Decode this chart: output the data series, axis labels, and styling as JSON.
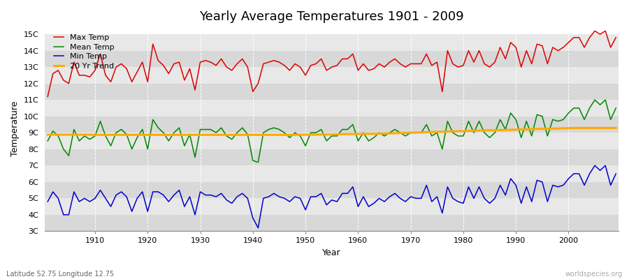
{
  "title": "Yearly Average Temperatures 1901 - 2009",
  "xlabel": "Year",
  "ylabel": "Temperature",
  "footer_left": "Latitude 52.75 Longitude 12.75",
  "footer_right": "worldspecies.org",
  "ylim": [
    3,
    15.5
  ],
  "yticks": [
    3,
    4,
    5,
    6,
    7,
    8,
    9,
    10,
    11,
    12,
    13,
    14,
    15
  ],
  "ytick_labels": [
    "3C",
    "4C",
    "5C",
    "6C",
    "7C",
    "8C",
    "9C",
    "10C",
    "11C",
    "12C",
    "13C",
    "14C",
    "15C"
  ],
  "xlim": [
    1900.5,
    2009.5
  ],
  "xticks": [
    1910,
    1920,
    1930,
    1940,
    1950,
    1960,
    1970,
    1980,
    1990,
    2000
  ],
  "years": [
    1901,
    1902,
    1903,
    1904,
    1905,
    1906,
    1907,
    1908,
    1909,
    1910,
    1911,
    1912,
    1913,
    1914,
    1915,
    1916,
    1917,
    1918,
    1919,
    1920,
    1921,
    1922,
    1923,
    1924,
    1925,
    1926,
    1927,
    1928,
    1929,
    1930,
    1931,
    1932,
    1933,
    1934,
    1935,
    1936,
    1937,
    1938,
    1939,
    1940,
    1941,
    1942,
    1943,
    1944,
    1945,
    1946,
    1947,
    1948,
    1949,
    1950,
    1951,
    1952,
    1953,
    1954,
    1955,
    1956,
    1957,
    1958,
    1959,
    1960,
    1961,
    1962,
    1963,
    1964,
    1965,
    1966,
    1967,
    1968,
    1969,
    1970,
    1971,
    1972,
    1973,
    1974,
    1975,
    1976,
    1977,
    1978,
    1979,
    1980,
    1981,
    1982,
    1983,
    1984,
    1985,
    1986,
    1987,
    1988,
    1989,
    1990,
    1991,
    1992,
    1993,
    1994,
    1995,
    1996,
    1997,
    1998,
    1999,
    2000,
    2001,
    2002,
    2003,
    2004,
    2005,
    2006,
    2007,
    2008,
    2009
  ],
  "max_temp": [
    11.2,
    12.6,
    12.8,
    12.2,
    12.0,
    13.3,
    12.5,
    12.5,
    12.4,
    12.8,
    13.8,
    12.5,
    12.1,
    13.0,
    13.2,
    12.9,
    12.1,
    12.7,
    13.3,
    12.1,
    14.4,
    13.4,
    13.1,
    12.6,
    13.2,
    13.3,
    12.2,
    12.9,
    11.6,
    13.3,
    13.4,
    13.3,
    13.1,
    13.5,
    13.0,
    12.8,
    13.2,
    13.5,
    13.0,
    11.5,
    12.0,
    13.2,
    13.3,
    13.4,
    13.3,
    13.1,
    12.8,
    13.2,
    13.0,
    12.5,
    13.1,
    13.2,
    13.5,
    12.8,
    13.0,
    13.1,
    13.5,
    13.5,
    13.8,
    12.8,
    13.2,
    12.8,
    12.9,
    13.2,
    13.0,
    13.3,
    13.5,
    13.2,
    13.0,
    13.2,
    13.2,
    13.2,
    13.8,
    13.1,
    13.3,
    11.5,
    14.0,
    13.2,
    13.0,
    13.1,
    14.0,
    13.3,
    14.0,
    13.2,
    13.0,
    13.3,
    14.2,
    13.5,
    14.5,
    14.2,
    13.0,
    14.0,
    13.2,
    14.4,
    14.3,
    13.2,
    14.2,
    14.0,
    14.2,
    14.5,
    14.8,
    14.8,
    14.2,
    14.8,
    15.2,
    15.0,
    15.2,
    14.2,
    14.8
  ],
  "mean_temp": [
    8.5,
    9.1,
    8.8,
    8.0,
    7.6,
    9.2,
    8.5,
    8.8,
    8.6,
    8.8,
    9.7,
    8.8,
    8.2,
    9.0,
    9.2,
    8.9,
    8.0,
    8.7,
    9.2,
    8.0,
    9.8,
    9.3,
    9.0,
    8.5,
    9.0,
    9.3,
    8.2,
    8.9,
    7.5,
    9.2,
    9.2,
    9.2,
    9.0,
    9.3,
    8.8,
    8.6,
    9.0,
    9.3,
    8.9,
    7.3,
    7.2,
    9.0,
    9.2,
    9.3,
    9.2,
    9.0,
    8.7,
    9.0,
    8.8,
    8.2,
    9.0,
    9.0,
    9.2,
    8.5,
    8.8,
    8.8,
    9.2,
    9.2,
    9.5,
    8.5,
    9.0,
    8.5,
    8.7,
    9.0,
    8.8,
    9.0,
    9.2,
    9.0,
    8.8,
    9.0,
    9.0,
    9.0,
    9.5,
    8.8,
    9.0,
    8.0,
    9.7,
    9.0,
    8.8,
    8.8,
    9.7,
    9.0,
    9.7,
    9.0,
    8.7,
    9.0,
    9.8,
    9.2,
    10.2,
    9.8,
    8.7,
    9.7,
    8.8,
    10.1,
    10.0,
    8.8,
    9.8,
    9.7,
    9.8,
    10.2,
    10.5,
    10.5,
    9.8,
    10.5,
    11.0,
    10.7,
    11.0,
    9.8,
    10.5
  ],
  "min_temp": [
    4.8,
    5.4,
    5.0,
    4.0,
    4.0,
    5.4,
    4.8,
    5.0,
    4.8,
    5.0,
    5.5,
    5.0,
    4.5,
    5.2,
    5.4,
    5.1,
    4.2,
    5.0,
    5.4,
    4.2,
    5.4,
    5.4,
    5.2,
    4.8,
    5.2,
    5.5,
    4.5,
    5.1,
    4.0,
    5.4,
    5.2,
    5.2,
    5.1,
    5.3,
    4.9,
    4.7,
    5.1,
    5.3,
    5.0,
    3.8,
    3.2,
    5.0,
    5.1,
    5.3,
    5.1,
    5.0,
    4.8,
    5.1,
    5.0,
    4.3,
    5.1,
    5.1,
    5.3,
    4.6,
    4.9,
    4.8,
    5.3,
    5.3,
    5.7,
    4.5,
    5.1,
    4.5,
    4.7,
    5.0,
    4.8,
    5.1,
    5.3,
    5.0,
    4.8,
    5.1,
    5.0,
    5.0,
    5.8,
    4.8,
    5.1,
    4.1,
    5.7,
    5.0,
    4.8,
    4.7,
    5.7,
    5.0,
    5.7,
    5.0,
    4.7,
    5.0,
    5.8,
    5.2,
    6.2,
    5.8,
    4.7,
    5.7,
    4.8,
    6.1,
    6.0,
    4.8,
    5.8,
    5.7,
    5.8,
    6.2,
    6.5,
    6.5,
    5.8,
    6.5,
    7.0,
    6.7,
    7.0,
    5.8,
    6.5
  ],
  "trend": [
    8.88,
    8.88,
    8.88,
    8.88,
    8.88,
    8.88,
    8.88,
    8.88,
    8.88,
    8.87,
    8.87,
    8.87,
    8.87,
    8.87,
    8.87,
    8.87,
    8.87,
    8.87,
    8.87,
    8.87,
    8.87,
    8.87,
    8.87,
    8.87,
    8.87,
    8.87,
    8.87,
    8.87,
    8.87,
    8.87,
    8.87,
    8.87,
    8.87,
    8.87,
    8.87,
    8.87,
    8.87,
    8.87,
    8.87,
    8.87,
    8.87,
    8.87,
    8.87,
    8.87,
    8.87,
    8.87,
    8.87,
    8.87,
    8.88,
    8.88,
    8.88,
    8.88,
    8.89,
    8.89,
    8.89,
    8.9,
    8.91,
    8.92,
    8.92,
    8.93,
    8.93,
    8.93,
    8.93,
    8.94,
    8.95,
    8.96,
    8.97,
    8.98,
    8.99,
    9.0,
    9.01,
    9.02,
    9.03,
    9.04,
    9.05,
    9.06,
    9.07,
    9.08,
    9.09,
    9.1,
    9.11,
    9.12,
    9.13,
    9.14,
    9.15,
    9.15,
    9.16,
    9.17,
    9.18,
    9.19,
    9.2,
    9.21,
    9.22,
    9.23,
    9.24,
    9.24,
    9.25,
    9.26,
    9.27,
    9.28,
    9.29,
    9.29,
    9.29,
    9.29,
    9.29,
    9.29,
    9.29,
    9.29,
    9.29
  ],
  "max_color": "#dd0000",
  "mean_color": "#008800",
  "min_color": "#0000cc",
  "trend_color": "#ffaa00",
  "bg_color": "#ffffff",
  "band_colors_dark": "#d8d8d8",
  "band_colors_light": "#e8e8e8",
  "title_fontsize": 13,
  "legend_fontsize": 8,
  "axis_fontsize": 8
}
